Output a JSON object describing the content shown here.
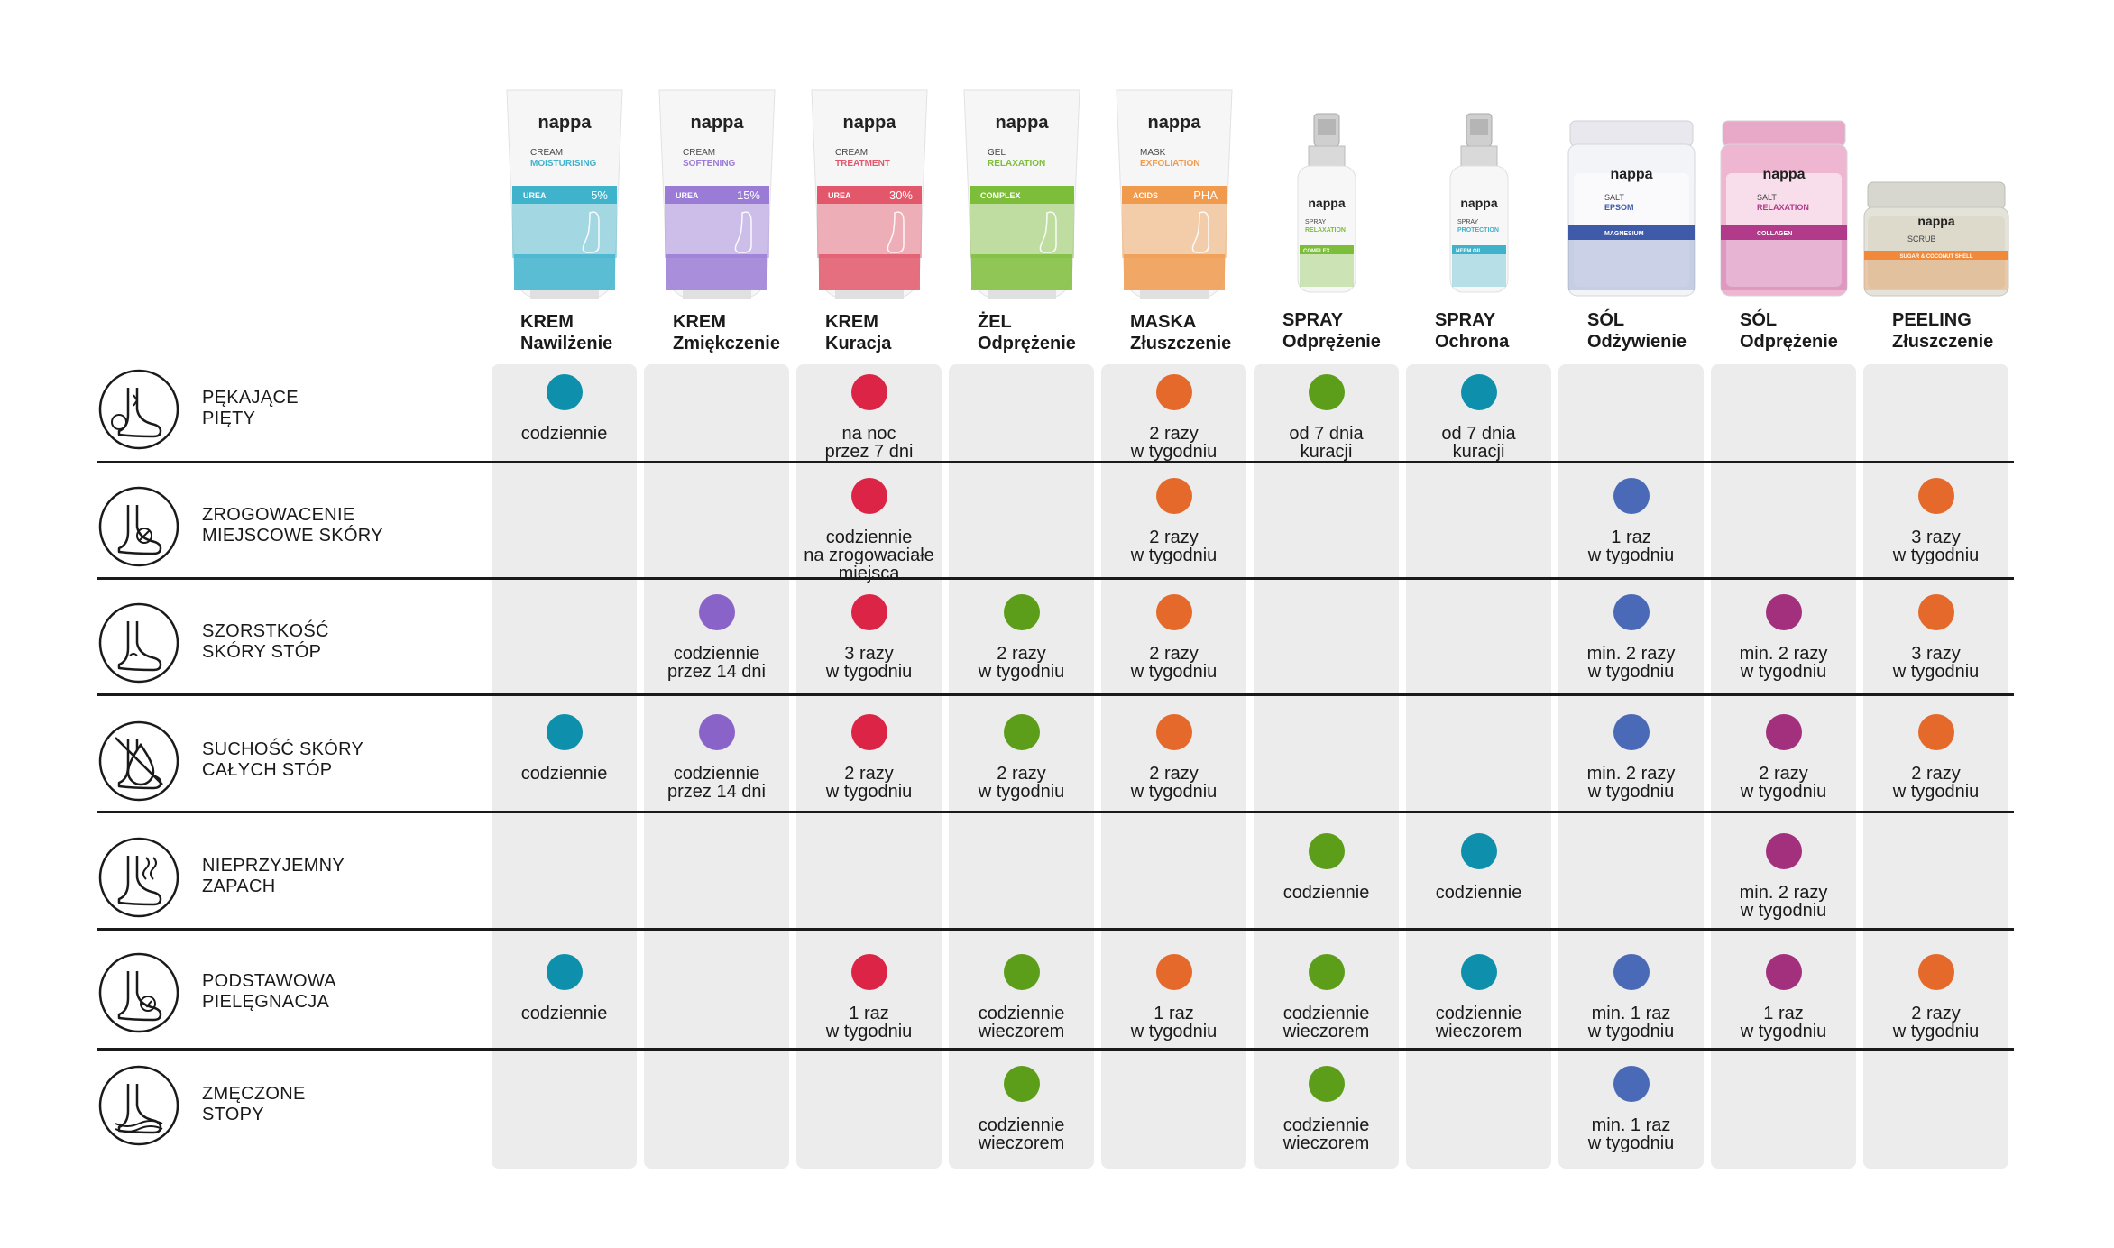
{
  "brand": "nappa",
  "colors": {
    "teal": "#0e8fab",
    "purple": "#8a63c9",
    "red": "#dc2447",
    "green": "#5c9e1a",
    "orange": "#e5692a",
    "blue": "#4a6ab8",
    "magenta": "#a3307d"
  },
  "products": [
    {
      "line1": "KREM",
      "line2": "Nawilżenie",
      "kind": "tube",
      "type": "CREAM",
      "variant": "MOISTURISING",
      "band": "UREA",
      "band_value": "5%",
      "accent": "#3fb3cc",
      "color": "teal"
    },
    {
      "line1": "KREM",
      "line2": "Zmiękczenie",
      "kind": "tube",
      "type": "CREAM",
      "variant": "SOFTENING",
      "band": "UREA",
      "band_value": "15%",
      "accent": "#9a7bd6",
      "color": "purple"
    },
    {
      "line1": "KREM",
      "line2": "Kuracja",
      "kind": "tube",
      "type": "CREAM",
      "variant": "TREATMENT",
      "band": "UREA",
      "band_value": "30%",
      "accent": "#e2576a",
      "color": "red"
    },
    {
      "line1": "ŻEL",
      "line2": "Odprężenie",
      "kind": "tube",
      "type": "GEL",
      "variant": "RELAXATION",
      "band": "COMPLEX",
      "band_value": "",
      "accent": "#7cbd3a",
      "color": "green"
    },
    {
      "line1": "MASKA",
      "line2": "Złuszczenie",
      "kind": "tube",
      "type": "MASK",
      "variant": "EXFOLIATION",
      "band": "ACIDS",
      "band_value": "PHA",
      "accent": "#f09a4e",
      "color": "orange"
    },
    {
      "line1": "SPRAY",
      "line2": "Odprężenie",
      "kind": "spray",
      "type": "SPRAY",
      "variant": "RELAXATION",
      "band": "COMPLEX",
      "band_value": "",
      "accent": "#7cbd3a",
      "color": "green"
    },
    {
      "line1": "SPRAY",
      "line2": "Ochrona",
      "kind": "spray",
      "type": "SPRAY",
      "variant": "PROTECTION",
      "band": "NEEM OIL",
      "band_value": "",
      "accent": "#3fb3cc",
      "color": "teal"
    },
    {
      "line1": "SÓL",
      "line2": "Odżywienie",
      "kind": "jar",
      "type": "SALT",
      "variant": "EPSOM",
      "band": "MAGNESIUM",
      "band_value": "",
      "accent": "#3f5aa8",
      "color": "blue"
    },
    {
      "line1": "SÓL",
      "line2": "Odprężenie",
      "kind": "jar",
      "type": "SALT",
      "variant": "RELAXATION",
      "band": "COLLAGEN",
      "band_value": "",
      "accent": "#b23a8a",
      "color": "magenta"
    },
    {
      "line1": "PEELING",
      "line2": "Złuszczenie",
      "kind": "scrub",
      "type": "SCRUB",
      "variant": "",
      "band": "SUGAR & COCONUT SHELL",
      "band_value": "",
      "accent": "#f08a3a",
      "color": "orange"
    }
  ],
  "rows": [
    {
      "label1": "PĘKAJĄCE",
      "label2": "PIĘTY",
      "icon": "cracked-heel-icon",
      "cells": [
        "codziennie",
        "",
        "na noc\nprzez 7 dni",
        "",
        "2 razy\nw tygodniu",
        "od 7 dnia\nkuracji",
        "od 7 dnia\nkuracji",
        "",
        "",
        ""
      ]
    },
    {
      "label1": "ZROGOWACENIE",
      "label2": "MIEJSCOWE SKÓRY",
      "icon": "callus-icon",
      "cells": [
        "",
        "",
        "codziennie\nna zrogowaciałe\nmiejsca",
        "",
        "2 razy\nw tygodniu",
        "",
        "",
        "1 raz\nw tygodniu",
        "",
        "3 razy\nw tygodniu"
      ]
    },
    {
      "label1": "SZORSTKOŚĆ",
      "label2": "SKÓRY STÓP",
      "icon": "rough-skin-icon",
      "cells": [
        "",
        "codziennie\nprzez 14 dni",
        "3 razy\nw tygodniu",
        "2 razy\nw tygodniu",
        "2 razy\nw tygodniu",
        "",
        "",
        "min. 2 razy\nw tygodniu",
        "min. 2 razy\nw tygodniu",
        "3 razy\nw tygodniu"
      ]
    },
    {
      "label1": "SUCHOŚĆ SKÓRY",
      "label2": "CAŁYCH STÓP",
      "icon": "dry-skin-icon",
      "cells": [
        "codziennie",
        "codziennie\nprzez 14 dni",
        "2 razy\nw tygodniu",
        "2 razy\nw tygodniu",
        "2 razy\nw tygodniu",
        "",
        "",
        "min. 2 razy\nw tygodniu",
        "2 razy\nw tygodniu",
        "2 razy\nw tygodniu"
      ]
    },
    {
      "label1": "NIEPRZYJEMNY",
      "label2": "ZAPACH",
      "icon": "odor-icon",
      "cells": [
        "",
        "",
        "",
        "",
        "",
        "codziennie",
        "codziennie",
        "",
        "min. 2 razy\nw tygodniu",
        ""
      ]
    },
    {
      "label1": "PODSTAWOWA",
      "label2": "PIELĘGNACJA",
      "icon": "basic-care-icon",
      "cells": [
        "codziennie",
        "",
        "1 raz\nw tygodniu",
        "codziennie\nwieczorem",
        "1 raz\nw tygodniu",
        "codziennie\nwieczorem",
        "codziennie\nwieczorem",
        "min. 1 raz\nw tygodniu",
        "1 raz\nw tygodniu",
        "2 razy\nw tygodniu"
      ]
    },
    {
      "label1": "ZMĘCZONE",
      "label2": "STOPY",
      "icon": "tired-feet-icon",
      "cells": [
        "",
        "",
        "",
        "codziennie\nwieczorem",
        "",
        "codziennie\nwieczorem",
        "",
        "min. 1 raz\nw tygodniu",
        "",
        ""
      ]
    }
  ]
}
